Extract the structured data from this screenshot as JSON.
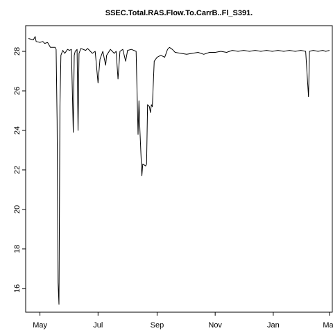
{
  "chart_data": {
    "type": "line",
    "title": "SSEC.Total.RAS.Flow.To.CarrB..Fl_S391.",
    "xlabel": "",
    "ylabel": "",
    "x_axis": {
      "type": "date",
      "range": [
        "2017-04-16",
        "2018-03-04"
      ],
      "ticks": [
        {
          "value": "2017-05-01",
          "label": "May"
        },
        {
          "value": "2017-07-01",
          "label": "Jul"
        },
        {
          "value": "2017-09-01",
          "label": "Sep"
        },
        {
          "value": "2017-11-01",
          "label": "Nov"
        },
        {
          "value": "2018-01-01",
          "label": "Jan"
        },
        {
          "value": "2018-03-01",
          "label": "Mar"
        }
      ]
    },
    "y_axis": {
      "range": [
        14.8,
        29.3
      ],
      "ticks": [
        16,
        18,
        20,
        22,
        24,
        26,
        28
      ]
    },
    "grid": false,
    "series": [
      {
        "points": [
          [
            "2017-04-19",
            28.65
          ],
          [
            "2017-04-24",
            28.58
          ],
          [
            "2017-04-26",
            28.75
          ],
          [
            "2017-04-27",
            28.5
          ],
          [
            "2017-05-01",
            28.45
          ],
          [
            "2017-05-04",
            28.5
          ],
          [
            "2017-05-06",
            28.4
          ],
          [
            "2017-05-09",
            28.45
          ],
          [
            "2017-05-12",
            28.2
          ],
          [
            "2017-05-17",
            28.2
          ],
          [
            "2017-05-18",
            28.1
          ],
          [
            "2017-05-19",
            24.5
          ],
          [
            "2017-05-20",
            16.3
          ],
          [
            "2017-05-21",
            15.2
          ],
          [
            "2017-05-22",
            25.2
          ],
          [
            "2017-05-23",
            27.8
          ],
          [
            "2017-05-25",
            28.05
          ],
          [
            "2017-05-27",
            27.9
          ],
          [
            "2017-05-30",
            28.1
          ],
          [
            "2017-06-01",
            28.05
          ],
          [
            "2017-06-03",
            28.1
          ],
          [
            "2017-06-05",
            23.9
          ],
          [
            "2017-06-06",
            27.8
          ],
          [
            "2017-06-07",
            28.0
          ],
          [
            "2017-06-09",
            28.1
          ],
          [
            "2017-06-10",
            24.0
          ],
          [
            "2017-06-11",
            27.9
          ],
          [
            "2017-06-13",
            28.15
          ],
          [
            "2017-06-18",
            28.05
          ],
          [
            "2017-06-20",
            28.15
          ],
          [
            "2017-06-25",
            27.9
          ],
          [
            "2017-06-28",
            28.0
          ],
          [
            "2017-07-01",
            26.4
          ],
          [
            "2017-07-03",
            27.6
          ],
          [
            "2017-07-06",
            28.0
          ],
          [
            "2017-07-09",
            27.3
          ],
          [
            "2017-07-10",
            27.8
          ],
          [
            "2017-07-14",
            28.1
          ],
          [
            "2017-07-18",
            27.9
          ],
          [
            "2017-07-20",
            28.0
          ],
          [
            "2017-07-22",
            26.6
          ],
          [
            "2017-07-24",
            28.0
          ],
          [
            "2017-07-27",
            28.1
          ],
          [
            "2017-07-30",
            27.5
          ],
          [
            "2017-08-01",
            28.05
          ],
          [
            "2017-08-05",
            28.1
          ],
          [
            "2017-08-10",
            28.0
          ],
          [
            "2017-08-12",
            23.8
          ],
          [
            "2017-08-13",
            25.5
          ],
          [
            "2017-08-14",
            24.0
          ],
          [
            "2017-08-16",
            21.7
          ],
          [
            "2017-08-17",
            22.3
          ],
          [
            "2017-08-20",
            22.2
          ],
          [
            "2017-08-21",
            22.3
          ],
          [
            "2017-08-22",
            25.3
          ],
          [
            "2017-08-24",
            25.2
          ],
          [
            "2017-08-25",
            24.9
          ],
          [
            "2017-08-26",
            25.3
          ],
          [
            "2017-08-27",
            25.2
          ],
          [
            "2017-08-29",
            27.5
          ],
          [
            "2017-09-01",
            27.7
          ],
          [
            "2017-09-05",
            27.8
          ],
          [
            "2017-09-09",
            27.7
          ],
          [
            "2017-09-12",
            28.1
          ],
          [
            "2017-09-14",
            28.2
          ],
          [
            "2017-09-17",
            28.1
          ],
          [
            "2017-09-20",
            27.95
          ],
          [
            "2017-09-26",
            27.9
          ],
          [
            "2017-10-02",
            27.85
          ],
          [
            "2017-10-08",
            27.9
          ],
          [
            "2017-10-14",
            27.95
          ],
          [
            "2017-10-20",
            27.85
          ],
          [
            "2017-10-26",
            27.95
          ],
          [
            "2017-11-01",
            27.95
          ],
          [
            "2017-11-07",
            28.0
          ],
          [
            "2017-11-13",
            27.95
          ],
          [
            "2017-11-19",
            28.05
          ],
          [
            "2017-11-25",
            28.0
          ],
          [
            "2017-12-01",
            28.05
          ],
          [
            "2017-12-07",
            28.0
          ],
          [
            "2017-12-13",
            28.05
          ],
          [
            "2017-12-19",
            28.0
          ],
          [
            "2017-12-25",
            28.05
          ],
          [
            "2017-12-31",
            28.0
          ],
          [
            "2018-01-06",
            28.05
          ],
          [
            "2018-01-12",
            28.0
          ],
          [
            "2018-01-18",
            28.05
          ],
          [
            "2018-01-24",
            28.0
          ],
          [
            "2018-01-30",
            28.05
          ],
          [
            "2018-02-04",
            28.0
          ],
          [
            "2018-02-07",
            25.7
          ],
          [
            "2018-02-08",
            28.0
          ],
          [
            "2018-02-12",
            28.05
          ],
          [
            "2018-02-17",
            28.0
          ],
          [
            "2018-02-22",
            28.05
          ],
          [
            "2018-02-25",
            28.0
          ],
          [
            "2018-03-01",
            28.05
          ]
        ]
      }
    ]
  }
}
